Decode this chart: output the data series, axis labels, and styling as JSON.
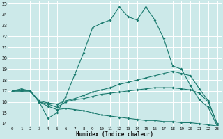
{
  "xlabel": "Humidex (Indice chaleur)",
  "bg_color": "#cce9e9",
  "grid_color": "#ffffff",
  "line_color": "#1a7a6e",
  "xlim": [
    -0.5,
    23.5
  ],
  "ylim": [
    13.8,
    25.2
  ],
  "xticks": [
    0,
    1,
    2,
    3,
    4,
    5,
    6,
    7,
    8,
    9,
    10,
    11,
    12,
    13,
    14,
    15,
    16,
    17,
    18,
    19,
    20,
    21,
    22,
    23
  ],
  "yticks": [
    14,
    15,
    16,
    17,
    18,
    19,
    20,
    21,
    22,
    23,
    24,
    25
  ],
  "line1_x": [
    0,
    1,
    2,
    3,
    4,
    5,
    6,
    7,
    8,
    9,
    10,
    11,
    12,
    13,
    14,
    15,
    16,
    17,
    18,
    19,
    20,
    21,
    22,
    23
  ],
  "line1_y": [
    17.0,
    17.2,
    17.0,
    16.0,
    14.5,
    15.0,
    16.5,
    18.5,
    20.5,
    22.8,
    23.2,
    23.5,
    24.7,
    23.8,
    23.5,
    24.7,
    23.5,
    21.8,
    19.3,
    19.0,
    17.5,
    16.2,
    15.5,
    13.8
  ],
  "line2_x": [
    0,
    1,
    2,
    3,
    4,
    5,
    6,
    7,
    8,
    9,
    10,
    11,
    12,
    13,
    14,
    15,
    16,
    17,
    18,
    19,
    20,
    21,
    22,
    23
  ],
  "line2_y": [
    17.0,
    17.0,
    17.0,
    16.1,
    15.9,
    15.8,
    16.1,
    16.3,
    16.6,
    16.9,
    17.1,
    17.3,
    17.6,
    17.8,
    18.0,
    18.2,
    18.4,
    18.6,
    18.8,
    18.6,
    18.4,
    17.2,
    16.1,
    14.0
  ],
  "line3_x": [
    0,
    1,
    2,
    3,
    4,
    5,
    6,
    7,
    8,
    9,
    10,
    11,
    12,
    13,
    14,
    15,
    16,
    17,
    18,
    19,
    20,
    21,
    22,
    23
  ],
  "line3_y": [
    17.0,
    17.0,
    17.0,
    16.0,
    15.8,
    15.5,
    16.0,
    16.2,
    16.3,
    16.5,
    16.7,
    16.8,
    16.9,
    17.0,
    17.1,
    17.2,
    17.3,
    17.3,
    17.3,
    17.2,
    17.1,
    16.8,
    16.0,
    14.0
  ],
  "line4_x": [
    0,
    1,
    2,
    3,
    4,
    5,
    6,
    7,
    8,
    9,
    10,
    11,
    12,
    13,
    14,
    15,
    16,
    17,
    18,
    19,
    20,
    21,
    22,
    23
  ],
  "line4_y": [
    17.0,
    17.0,
    17.0,
    16.0,
    15.6,
    15.3,
    15.4,
    15.3,
    15.2,
    15.0,
    14.8,
    14.7,
    14.6,
    14.5,
    14.4,
    14.3,
    14.3,
    14.2,
    14.2,
    14.1,
    14.1,
    14.0,
    13.9,
    13.8
  ]
}
